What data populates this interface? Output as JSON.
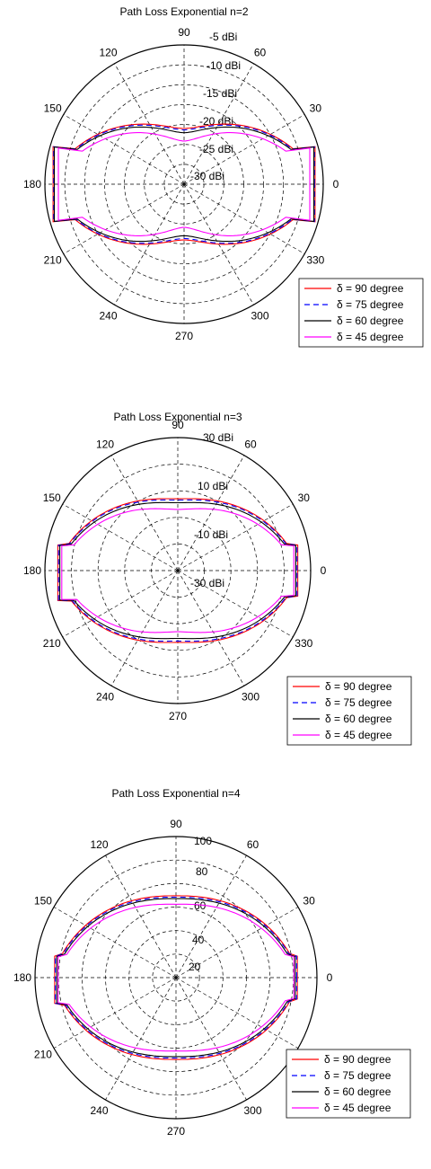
{
  "chart_data": [
    {
      "type": "polar",
      "title": "Path Loss Exponential n=2",
      "angle_tick_labels": [
        "0",
        "30",
        "60",
        "90",
        "120",
        "150",
        "180",
        "210",
        "240",
        "270",
        "300",
        "330"
      ],
      "radial_tick_labels": [
        "-5 dBi",
        "-10 dBi",
        "-15 dBi",
        "-20 dBi",
        "-25 dBi",
        "-30 dBi"
      ],
      "legend_position": "bottom-right",
      "series": [
        {
          "name": "δ = 90 degree",
          "color": "#ff0000",
          "dash": "solid",
          "r_side": 0.99,
          "r_top": 0.4,
          "side_half_angle": 18
        },
        {
          "name": "δ = 75 degree",
          "color": "#0000ff",
          "dash": "dashed",
          "r_side": 0.985,
          "r_top": 0.39,
          "side_half_angle": 18
        },
        {
          "name": "δ = 60 degree",
          "color": "#000000",
          "dash": "solid",
          "r_side": 0.98,
          "r_top": 0.37,
          "side_half_angle": 18
        },
        {
          "name": "δ = 45 degree",
          "color": "#ff00ff",
          "dash": "solid",
          "r_side": 0.95,
          "r_top": 0.31,
          "side_half_angle": 18
        }
      ]
    },
    {
      "type": "polar",
      "title": "Path Loss Exponential n=3",
      "angle_tick_labels": [
        "0",
        "30",
        "60",
        "90",
        "120",
        "150",
        "180",
        "210",
        "240",
        "270",
        "300",
        "330"
      ],
      "radial_tick_labels": [
        "30 dBi",
        "10 dBi",
        "-10 dBi",
        "-30 dBi"
      ],
      "legend_position": "bottom-right",
      "series": [
        {
          "name": "δ = 90 degree",
          "color": "#ff0000",
          "dash": "solid",
          "r_side": 0.93,
          "r_top": 0.54,
          "side_half_angle": 14
        },
        {
          "name": "δ = 75 degree",
          "color": "#0000ff",
          "dash": "dashed",
          "r_side": 0.925,
          "r_top": 0.53,
          "side_half_angle": 14
        },
        {
          "name": "δ = 60 degree",
          "color": "#000000",
          "dash": "solid",
          "r_side": 0.915,
          "r_top": 0.51,
          "side_half_angle": 14
        },
        {
          "name": "δ = 45 degree",
          "color": "#ff00ff",
          "dash": "solid",
          "r_side": 0.9,
          "r_top": 0.46,
          "side_half_angle": 14
        }
      ]
    },
    {
      "type": "polar",
      "title": "Path Loss Exponential n=4",
      "angle_tick_labels": [
        "0",
        "30",
        "60",
        "90",
        "120",
        "150",
        "180",
        "210",
        "240",
        "270",
        "300",
        "330"
      ],
      "radial_tick_labels": [
        "100",
        "80",
        "60",
        "40",
        "20"
      ],
      "legend_position": "bottom-right",
      "series": [
        {
          "name": "δ = 90 degree",
          "color": "#ff0000",
          "dash": "solid",
          "r_side": 0.88,
          "r_top": 0.58,
          "side_half_angle": 12
        },
        {
          "name": "δ = 75 degree",
          "color": "#0000ff",
          "dash": "dashed",
          "r_side": 0.875,
          "r_top": 0.57,
          "side_half_angle": 12
        },
        {
          "name": "δ = 60 degree",
          "color": "#000000",
          "dash": "solid",
          "r_side": 0.865,
          "r_top": 0.56,
          "side_half_angle": 12
        },
        {
          "name": "δ = 45 degree",
          "color": "#ff00ff",
          "dash": "solid",
          "r_side": 0.855,
          "r_top": 0.52,
          "side_half_angle": 12
        }
      ]
    }
  ]
}
